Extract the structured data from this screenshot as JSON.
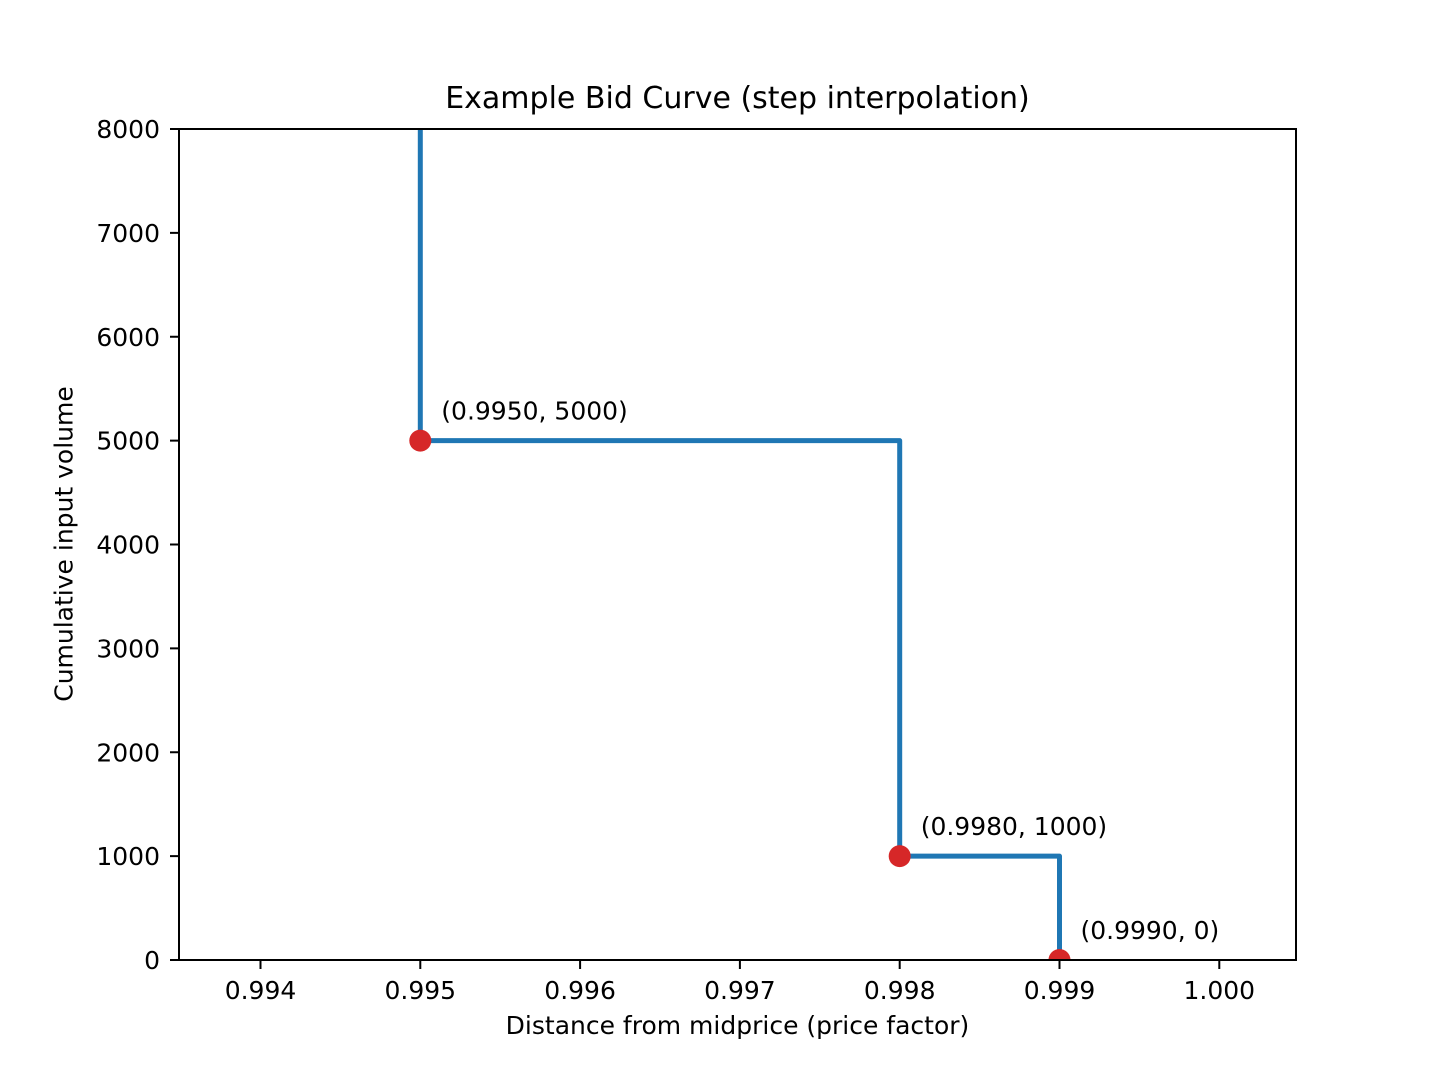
{
  "figure": {
    "background": "#ffffff",
    "text_color": "#000000"
  },
  "chart_data": {
    "type": "line",
    "title": "Example Bid Curve (step interpolation)",
    "xlabel": "Distance from midprice (price factor)",
    "ylabel": "Cumulative input volume",
    "step_interpolation": true,
    "grid": false,
    "legend": false,
    "line_color": "#1f77b4",
    "marker_color": "#d62728",
    "axis_color": "#000000",
    "xlim": [
      0.99349,
      1.00048
    ],
    "ylim": [
      0,
      8000
    ],
    "x_ticks": [
      0.994,
      0.995,
      0.996,
      0.997,
      0.998,
      0.999,
      1.0
    ],
    "x_tick_labels": [
      "0.994",
      "0.995",
      "0.996",
      "0.997",
      "0.998",
      "0.999",
      "1.000"
    ],
    "y_ticks": [
      0,
      1000,
      2000,
      3000,
      4000,
      5000,
      6000,
      7000,
      8000
    ],
    "y_tick_labels": [
      "0",
      "1000",
      "2000",
      "3000",
      "4000",
      "5000",
      "6000",
      "7000",
      "8000"
    ],
    "curve_path": [
      [
        0.995,
        8000
      ],
      [
        0.995,
        5000
      ],
      [
        0.998,
        5000
      ],
      [
        0.998,
        1000
      ],
      [
        0.999,
        1000
      ],
      [
        0.999,
        0
      ]
    ],
    "points": [
      {
        "x": 0.995,
        "y": 5000,
        "label": "(0.9950, 5000)"
      },
      {
        "x": 0.998,
        "y": 1000,
        "label": "(0.9980, 1000)"
      },
      {
        "x": 0.999,
        "y": 0,
        "label": "(0.9990, 0)"
      }
    ]
  }
}
